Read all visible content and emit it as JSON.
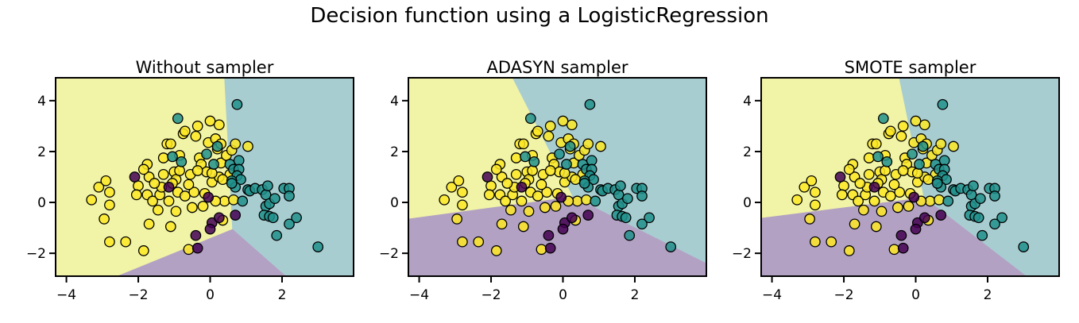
{
  "figure": {
    "suptitle": "Decision function using a LogisticRegression"
  },
  "colors": {
    "region_class0": "#b3a1c4",
    "region_class1": "#a8cdd1",
    "region_class2": "#f1f3a6",
    "point_class0": "#440154",
    "point_class1": "#21918c",
    "point_class2": "#fde725",
    "point_edge": "#000000"
  },
  "chart_data": [
    {
      "type": "scatter",
      "title": "Without sampler",
      "xlabel": "",
      "ylabel": "",
      "xlim": [
        -4.3,
        3.99
      ],
      "ylim": [
        -2.9,
        4.9
      ],
      "xticks": [
        -4,
        -2,
        0,
        2
      ],
      "xtick_labels": [
        "−4",
        "−2",
        "0",
        "2"
      ],
      "yticks": [
        -2,
        0,
        2,
        4
      ],
      "ytick_labels": [
        "−2",
        "0",
        "2",
        "4"
      ],
      "grid": false,
      "regions": [
        {
          "class": 2,
          "polygon": [
            [
              -4.3,
              4.9
            ],
            [
              0.4,
              4.9
            ],
            [
              0.62,
              -1.06
            ],
            [
              -2.58,
              -2.9
            ],
            [
              -4.3,
              -2.9
            ]
          ]
        },
        {
          "class": 1,
          "polygon": [
            [
              0.4,
              4.9
            ],
            [
              3.99,
              4.9
            ],
            [
              3.99,
              -2.9
            ],
            [
              2.1,
              -2.9
            ],
            [
              0.62,
              -1.06
            ]
          ]
        },
        {
          "class": 0,
          "polygon": [
            [
              -2.58,
              -2.9
            ],
            [
              0.62,
              -1.06
            ],
            [
              2.1,
              -2.9
            ]
          ]
        }
      ]
    },
    {
      "type": "scatter",
      "title": "ADASYN sampler",
      "xlabel": "",
      "ylabel": "",
      "xlim": [
        -4.3,
        3.99
      ],
      "ylim": [
        -2.9,
        4.9
      ],
      "xticks": [
        -4,
        -2,
        0,
        2
      ],
      "xtick_labels": [
        "−4",
        "−2",
        "0",
        "2"
      ],
      "yticks": [
        -2,
        0,
        2,
        4
      ],
      "ytick_labels": [
        "−2",
        "0",
        "2",
        "4"
      ],
      "grid": false,
      "regions": [
        {
          "class": 2,
          "polygon": [
            [
              -4.3,
              4.9
            ],
            [
              -1.4,
              4.9
            ],
            [
              0.28,
              0.22
            ],
            [
              -4.3,
              -0.65
            ]
          ]
        },
        {
          "class": 1,
          "polygon": [
            [
              -1.4,
              4.9
            ],
            [
              3.99,
              4.9
            ],
            [
              3.99,
              -2.4
            ],
            [
              0.28,
              0.22
            ]
          ]
        },
        {
          "class": 0,
          "polygon": [
            [
              -4.3,
              -0.65
            ],
            [
              0.28,
              0.22
            ],
            [
              3.99,
              -2.4
            ],
            [
              3.99,
              -2.9
            ],
            [
              -4.3,
              -2.9
            ]
          ]
        }
      ]
    },
    {
      "type": "scatter",
      "title": "SMOTE sampler",
      "xlabel": "",
      "ylabel": "",
      "xlim": [
        -4.3,
        3.99
      ],
      "ylim": [
        -2.9,
        4.9
      ],
      "xticks": [
        -4,
        -2,
        0,
        2
      ],
      "xtick_labels": [
        "−4",
        "−2",
        "0",
        "2"
      ],
      "yticks": [
        -2,
        0,
        2,
        4
      ],
      "ytick_labels": [
        "−2",
        "0",
        "2",
        "4"
      ],
      "grid": false,
      "regions": [
        {
          "class": 2,
          "polygon": [
            [
              -4.3,
              4.9
            ],
            [
              -0.46,
              4.9
            ],
            [
              0.23,
              0.19
            ],
            [
              -4.3,
              -0.62
            ]
          ]
        },
        {
          "class": 1,
          "polygon": [
            [
              -0.46,
              4.9
            ],
            [
              3.99,
              4.9
            ],
            [
              3.99,
              -2.9
            ],
            [
              3.07,
              -2.9
            ],
            [
              0.23,
              0.19
            ]
          ]
        },
        {
          "class": 0,
          "polygon": [
            [
              -4.3,
              -0.62
            ],
            [
              0.23,
              0.19
            ],
            [
              3.07,
              -2.9
            ],
            [
              -4.3,
              -2.9
            ]
          ]
        }
      ]
    }
  ],
  "points": {
    "class0": [
      [
        -2.1,
        1.0
      ],
      [
        -1.15,
        0.6
      ],
      [
        -0.05,
        0.2
      ],
      [
        -0.4,
        -1.3
      ],
      [
        -0.35,
        -1.8
      ],
      [
        0.05,
        -0.8
      ],
      [
        0.0,
        -1.05
      ],
      [
        0.7,
        -0.5
      ],
      [
        0.25,
        -0.6
      ]
    ],
    "class1": [
      [
        0.75,
        3.85
      ],
      [
        -0.9,
        3.3
      ],
      [
        -1.05,
        1.8
      ],
      [
        -0.8,
        1.6
      ],
      [
        -0.1,
        1.9
      ],
      [
        0.1,
        1.5
      ],
      [
        0.2,
        2.2
      ],
      [
        0.55,
        1.5
      ],
      [
        0.65,
        1.3
      ],
      [
        0.8,
        1.65
      ],
      [
        0.8,
        1.3
      ],
      [
        0.75,
        1.05
      ],
      [
        0.85,
        0.9
      ],
      [
        0.6,
        0.85
      ],
      [
        0.7,
        0.6
      ],
      [
        0.9,
        0.05
      ],
      [
        1.05,
        0.5
      ],
      [
        1.1,
        0.45
      ],
      [
        1.25,
        0.55
      ],
      [
        1.45,
        0.5
      ],
      [
        1.55,
        0.3
      ],
      [
        1.6,
        0.65
      ],
      [
        1.55,
        -0.15
      ],
      [
        1.65,
        -0.05
      ],
      [
        1.8,
        0.15
      ],
      [
        1.5,
        -0.5
      ],
      [
        1.65,
        -0.55
      ],
      [
        1.75,
        -0.6
      ],
      [
        2.05,
        0.55
      ],
      [
        2.2,
        0.55
      ],
      [
        2.2,
        0.25
      ],
      [
        2.4,
        -0.6
      ],
      [
        2.2,
        -0.85
      ],
      [
        1.85,
        -1.3
      ],
      [
        3.0,
        -1.75
      ],
      [
        0.6,
        0.75
      ]
    ],
    "class2": [
      [
        -3.3,
        0.1
      ],
      [
        -3.1,
        0.6
      ],
      [
        -2.9,
        0.85
      ],
      [
        -2.8,
        0.4
      ],
      [
        -2.95,
        -0.65
      ],
      [
        -2.8,
        -0.1
      ],
      [
        -2.8,
        -1.55
      ],
      [
        -2.35,
        -1.55
      ],
      [
        -1.85,
        -1.9
      ],
      [
        -1.7,
        -0.85
      ],
      [
        -1.1,
        -0.95
      ],
      [
        -0.6,
        -1.85
      ],
      [
        -2.0,
        0.65
      ],
      [
        -2.05,
        0.3
      ],
      [
        -1.75,
        0.3
      ],
      [
        -1.7,
        1.0
      ],
      [
        -1.75,
        1.5
      ],
      [
        -1.6,
        0.05
      ],
      [
        -1.45,
        -0.3
      ],
      [
        -1.4,
        0.3
      ],
      [
        -1.3,
        1.1
      ],
      [
        -1.3,
        1.75
      ],
      [
        -1.2,
        2.3
      ],
      [
        -1.1,
        2.3
      ],
      [
        -1.0,
        1.2
      ],
      [
        -0.95,
        0.9
      ],
      [
        -0.9,
        0.4
      ],
      [
        -0.85,
        1.85
      ],
      [
        -0.75,
        2.7
      ],
      [
        -0.7,
        2.8
      ],
      [
        -0.55,
        1.1
      ],
      [
        -0.45,
        0.4
      ],
      [
        -0.4,
        2.6
      ],
      [
        -0.35,
        3.0
      ],
      [
        -0.3,
        1.75
      ],
      [
        -0.25,
        1.5
      ],
      [
        -0.2,
        -0.15
      ],
      [
        -0.15,
        0.35
      ],
      [
        -0.1,
        1.2
      ],
      [
        -0.05,
        2.35
      ],
      [
        0.0,
        3.2
      ],
      [
        0.05,
        0.8
      ],
      [
        0.15,
        2.5
      ],
      [
        0.2,
        2.1
      ],
      [
        0.25,
        3.05
      ],
      [
        0.25,
        1.0
      ],
      [
        0.3,
        1.55
      ],
      [
        0.3,
        2.3
      ],
      [
        0.4,
        0.05
      ],
      [
        0.45,
        1.85
      ],
      [
        0.55,
        1.1
      ],
      [
        0.6,
        2.05
      ],
      [
        0.65,
        0.1
      ],
      [
        0.7,
        2.3
      ],
      [
        1.05,
        2.2
      ],
      [
        0.35,
        -0.7
      ],
      [
        -1.35,
        0.6
      ],
      [
        -0.95,
        -0.35
      ],
      [
        -0.5,
        -0.2
      ],
      [
        -0.85,
        1.25
      ],
      [
        -0.6,
        0.7
      ],
      [
        -1.55,
        0.75
      ],
      [
        -1.15,
        0.05
      ],
      [
        0.15,
        0.05
      ],
      [
        -0.35,
        1.25
      ],
      [
        0.05,
        1.15
      ],
      [
        -1.05,
        0.75
      ],
      [
        -1.85,
        1.3
      ],
      [
        -0.7,
        0.25
      ],
      [
        0.35,
        0.9
      ]
    ]
  }
}
